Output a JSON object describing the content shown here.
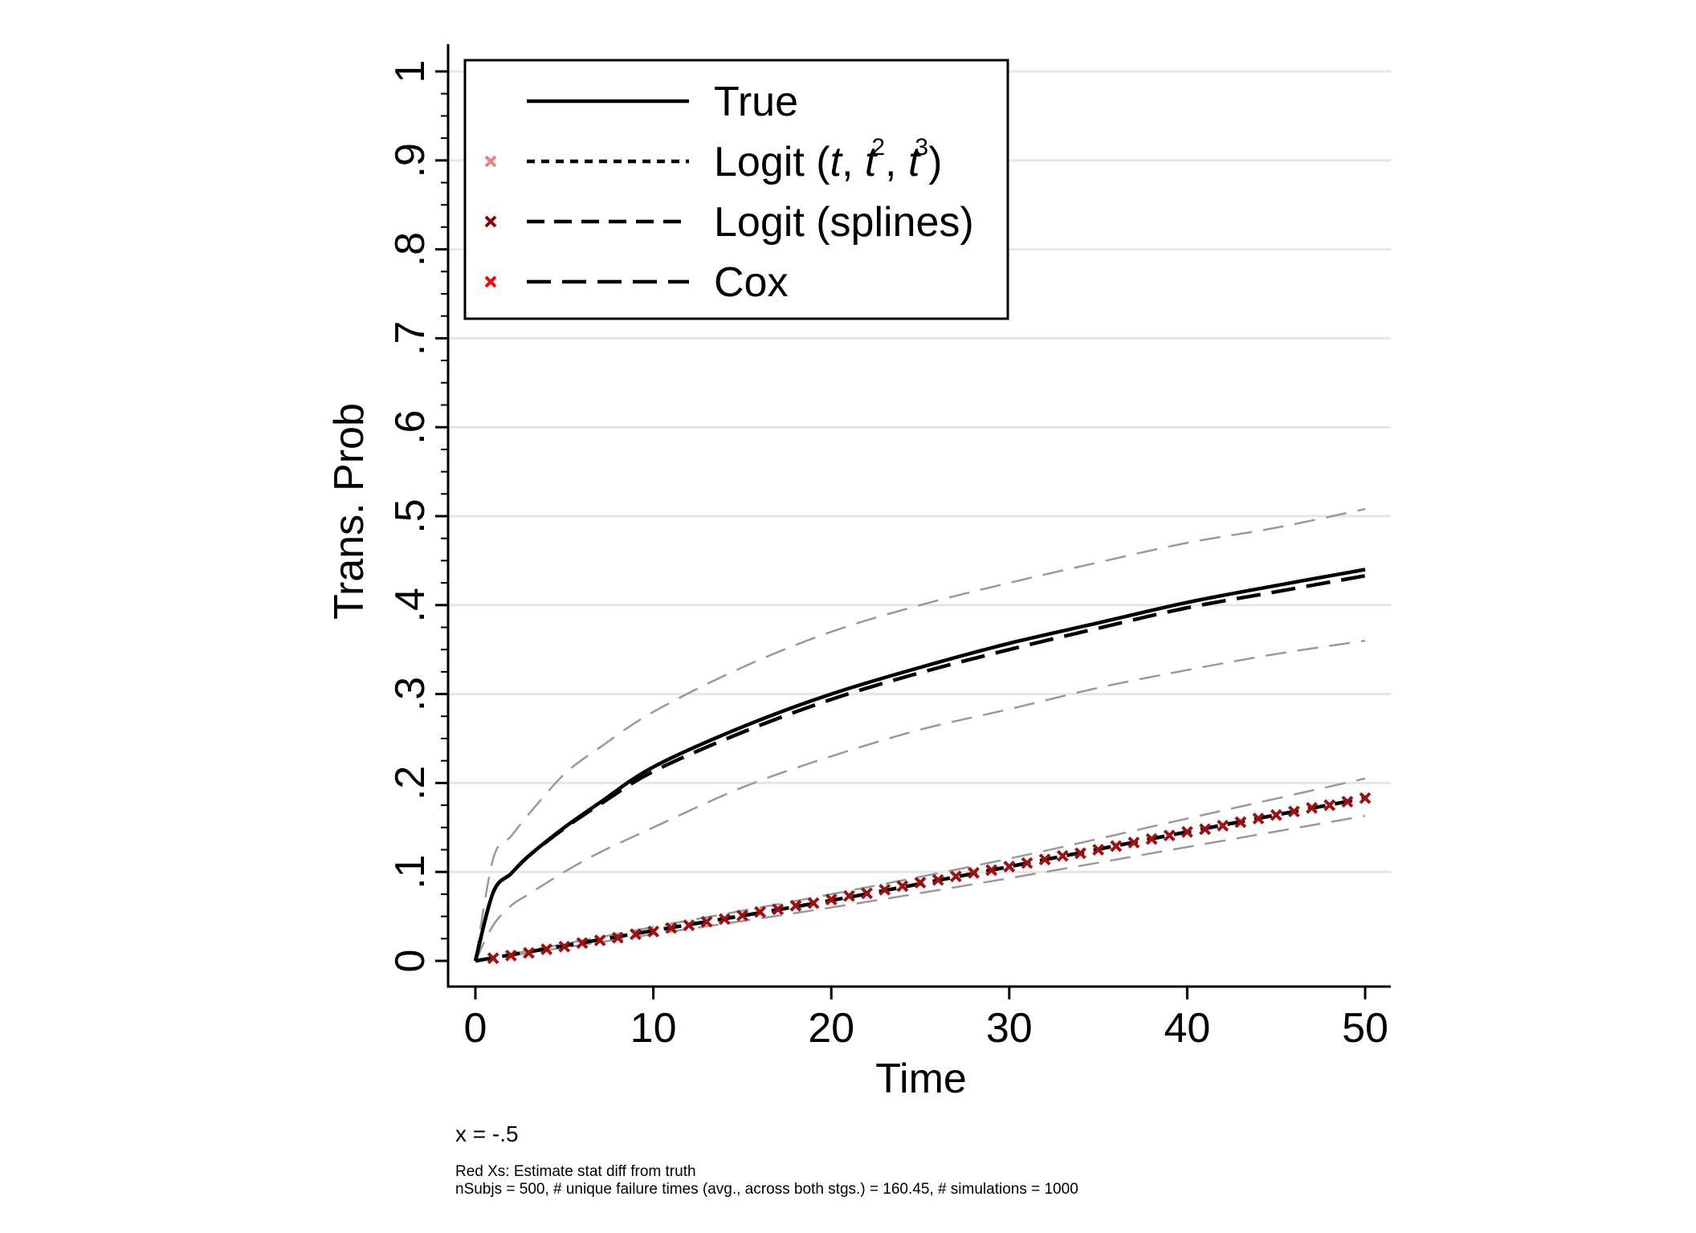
{
  "chart_data": {
    "type": "line",
    "xlabel": "Time",
    "ylabel": "Trans. Prob",
    "xlim": [
      0,
      50
    ],
    "ylim": [
      0,
      1
    ],
    "x_ticks": [
      0,
      10,
      20,
      30,
      40,
      50
    ],
    "x_tick_labels": [
      "0",
      "10",
      "20",
      "30",
      "40",
      "50"
    ],
    "y_ticks": [
      0,
      0.1,
      0.2,
      0.3,
      0.4,
      0.5,
      0.6,
      0.7,
      0.8,
      0.9,
      1
    ],
    "y_tick_labels": [
      "0",
      ".1",
      ".2",
      ".3",
      ".4",
      ".5",
      ".6",
      ".7",
      ".8",
      ".9",
      "1"
    ],
    "grid": "horizontal",
    "legend_position": "top-left",
    "legend": [
      {
        "label": "True",
        "style": "solid",
        "marker_color": null
      },
      {
        "label_parts": [
          "Logit (",
          "t",
          ", ",
          "t",
          "2",
          ", ",
          "t",
          "3",
          ")"
        ],
        "style": "short-dash",
        "marker_color": "#f08080"
      },
      {
        "label": "Logit (splines)",
        "style": "dash",
        "marker_color": "#8b0000"
      },
      {
        "label": "Cox",
        "style": "long-dash",
        "marker_color": "#ff0000"
      }
    ],
    "series": [
      {
        "name": "True",
        "group": "upper",
        "style": "solid",
        "color": "#000000",
        "x": [
          0,
          1,
          2,
          3,
          5,
          7,
          10,
          15,
          20,
          25,
          30,
          35,
          40,
          45,
          50
        ],
        "y": [
          0.0,
          0.077,
          0.098,
          0.118,
          0.15,
          0.178,
          0.218,
          0.263,
          0.3,
          0.33,
          0.357,
          0.38,
          0.403,
          0.422,
          0.44
        ]
      },
      {
        "name": "Cox",
        "group": "upper",
        "style": "long-dash",
        "color": "#000000",
        "x": [
          0,
          1,
          2,
          3,
          5,
          7,
          10,
          15,
          20,
          25,
          30,
          35,
          40,
          45,
          50
        ],
        "y": [
          0.0,
          0.077,
          0.098,
          0.118,
          0.149,
          0.176,
          0.213,
          0.257,
          0.294,
          0.324,
          0.35,
          0.374,
          0.397,
          0.415,
          0.433
        ]
      },
      {
        "name": "Upper CI (upper group)",
        "group": "upper",
        "style": "ci",
        "color": "#999999",
        "x": [
          0,
          1,
          2,
          3,
          5,
          7,
          10,
          15,
          20,
          25,
          30,
          35,
          40,
          45,
          50
        ],
        "y": [
          0.0,
          0.115,
          0.14,
          0.165,
          0.21,
          0.24,
          0.28,
          0.33,
          0.37,
          0.4,
          0.425,
          0.448,
          0.47,
          0.487,
          0.508
        ]
      },
      {
        "name": "Lower CI (upper group)",
        "group": "upper",
        "style": "ci",
        "color": "#999999",
        "x": [
          0,
          1,
          2,
          3,
          5,
          7,
          10,
          15,
          20,
          25,
          30,
          35,
          40,
          45,
          50
        ],
        "y": [
          0.0,
          0.04,
          0.062,
          0.075,
          0.1,
          0.122,
          0.15,
          0.195,
          0.23,
          0.26,
          0.283,
          0.307,
          0.327,
          0.345,
          0.36
        ]
      },
      {
        "name": "Lower group estimate",
        "group": "lower",
        "style": "dash",
        "color": "#000000",
        "x": [
          0,
          10,
          20,
          30,
          40,
          50
        ],
        "y": [
          0.0,
          0.034,
          0.068,
          0.106,
          0.145,
          0.183
        ]
      },
      {
        "name": "Upper CI (lower group)",
        "group": "lower",
        "style": "ci",
        "color": "#999999",
        "x": [
          0,
          10,
          20,
          30,
          40,
          50
        ],
        "y": [
          0.0,
          0.038,
          0.075,
          0.115,
          0.16,
          0.205
        ]
      },
      {
        "name": "Lower CI (lower group)",
        "group": "lower",
        "style": "ci",
        "color": "#999999",
        "x": [
          0,
          10,
          20,
          30,
          40,
          50
        ],
        "y": [
          0.0,
          0.03,
          0.06,
          0.093,
          0.128,
          0.163
        ]
      },
      {
        "name": "Red Xs",
        "group": "lower",
        "style": "x-markers",
        "color": "#a01010",
        "x": [
          1,
          2,
          3,
          4,
          5,
          6,
          7,
          8,
          9,
          10,
          11,
          12,
          13,
          14,
          15,
          16,
          17,
          18,
          19,
          20,
          21,
          22,
          23,
          24,
          25,
          26,
          27,
          28,
          29,
          30,
          31,
          32,
          33,
          34,
          35,
          36,
          37,
          38,
          39,
          40,
          41,
          42,
          43,
          44,
          45,
          46,
          47,
          48,
          49,
          50
        ],
        "y": [
          0.003,
          0.006,
          0.009,
          0.013,
          0.016,
          0.02,
          0.023,
          0.026,
          0.03,
          0.033,
          0.037,
          0.04,
          0.044,
          0.047,
          0.051,
          0.055,
          0.058,
          0.062,
          0.065,
          0.069,
          0.073,
          0.076,
          0.08,
          0.084,
          0.088,
          0.091,
          0.095,
          0.099,
          0.102,
          0.106,
          0.11,
          0.114,
          0.118,
          0.121,
          0.125,
          0.129,
          0.133,
          0.137,
          0.141,
          0.145,
          0.148,
          0.152,
          0.156,
          0.16,
          0.164,
          0.168,
          0.172,
          0.175,
          0.179,
          0.183
        ]
      }
    ],
    "notes": [
      "x = -.5",
      "Red Xs: Estimate stat diff from truth",
      "nSubjs = 500, # unique failure times (avg., across both stgs.) = 160.45, # simulations = 1000"
    ]
  }
}
